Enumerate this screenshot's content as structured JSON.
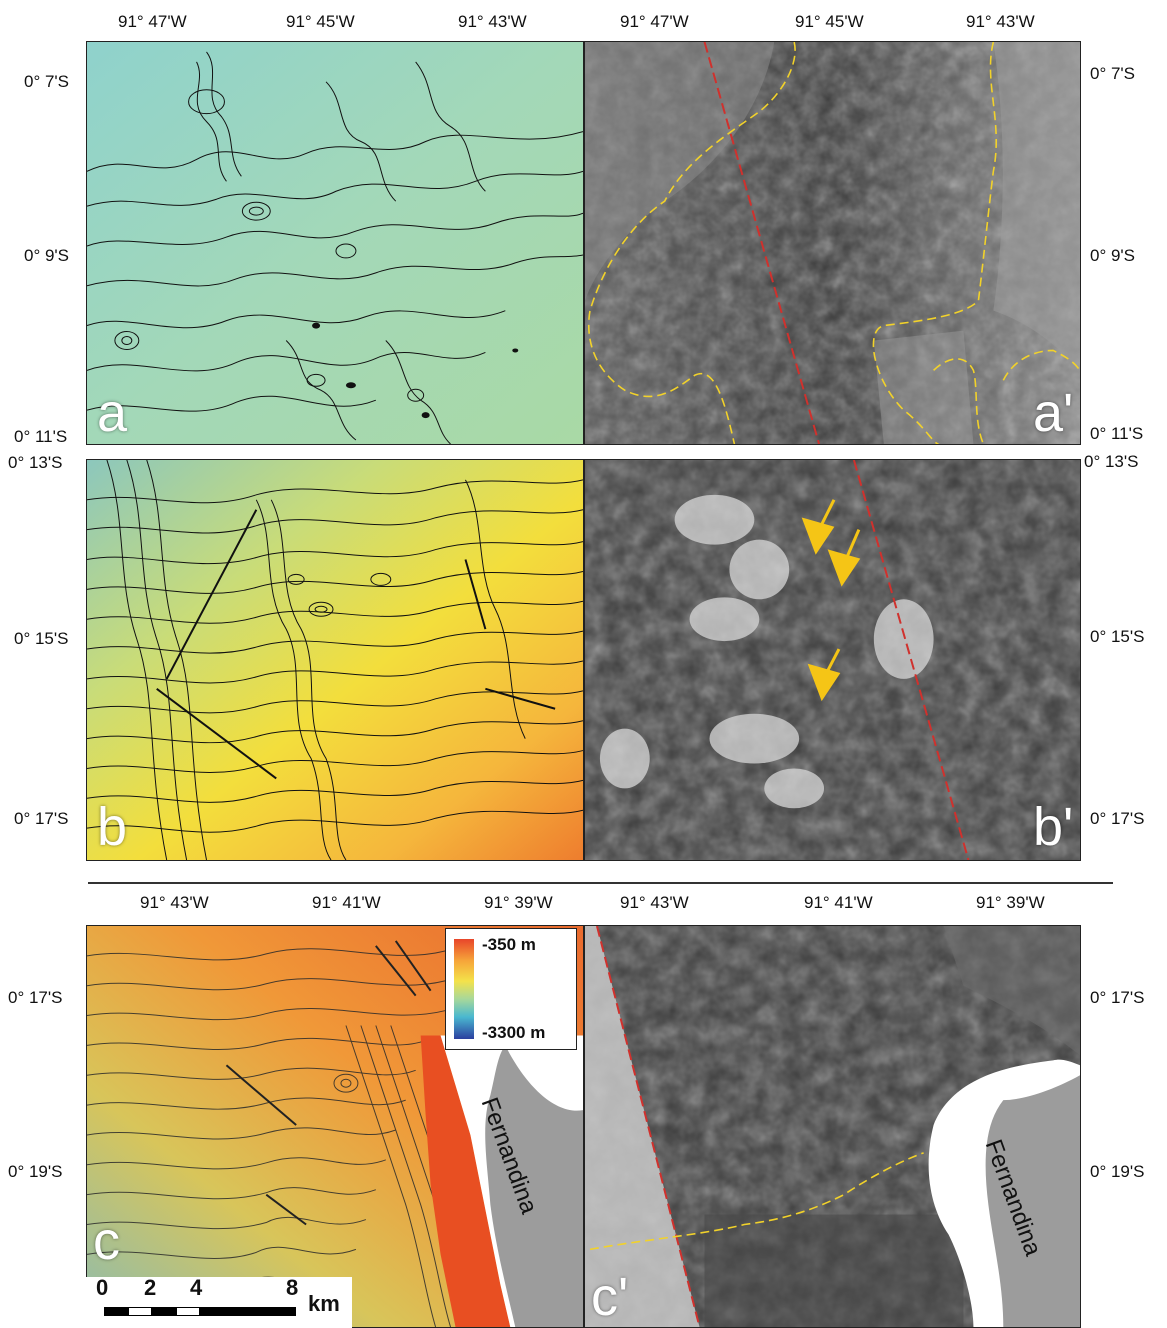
{
  "figure": {
    "top_longitudes": [
      "91° 47'W",
      "91° 45'W",
      "91° 43'W"
    ],
    "bottom_longitudes": [
      "91° 43'W",
      "91° 41'W",
      "91° 39'W"
    ],
    "lat_a": [
      "0° 7'S",
      "0° 9'S",
      "0° 11'S"
    ],
    "lat_b": [
      "0° 13'S",
      "0° 15'S",
      "0° 17'S"
    ],
    "lat_c": [
      "0° 17'S",
      "0° 19'S"
    ]
  },
  "panels": {
    "a": "a",
    "a_prime": "a'",
    "b": "b",
    "b_prime": "b'",
    "c": "c",
    "c_prime": "c'"
  },
  "legend": {
    "max": "-350 m",
    "min": "-3300 m"
  },
  "scale_bar": {
    "ticks": [
      "0",
      "2",
      "4",
      "8"
    ],
    "unit": "km"
  },
  "island": "Fernandina",
  "colors": {
    "boundary_dashed": "#f2d22a",
    "fault_dashed": "#d0312d",
    "arrows": "#f5c516"
  },
  "icons": [
    "arrow-icon"
  ]
}
